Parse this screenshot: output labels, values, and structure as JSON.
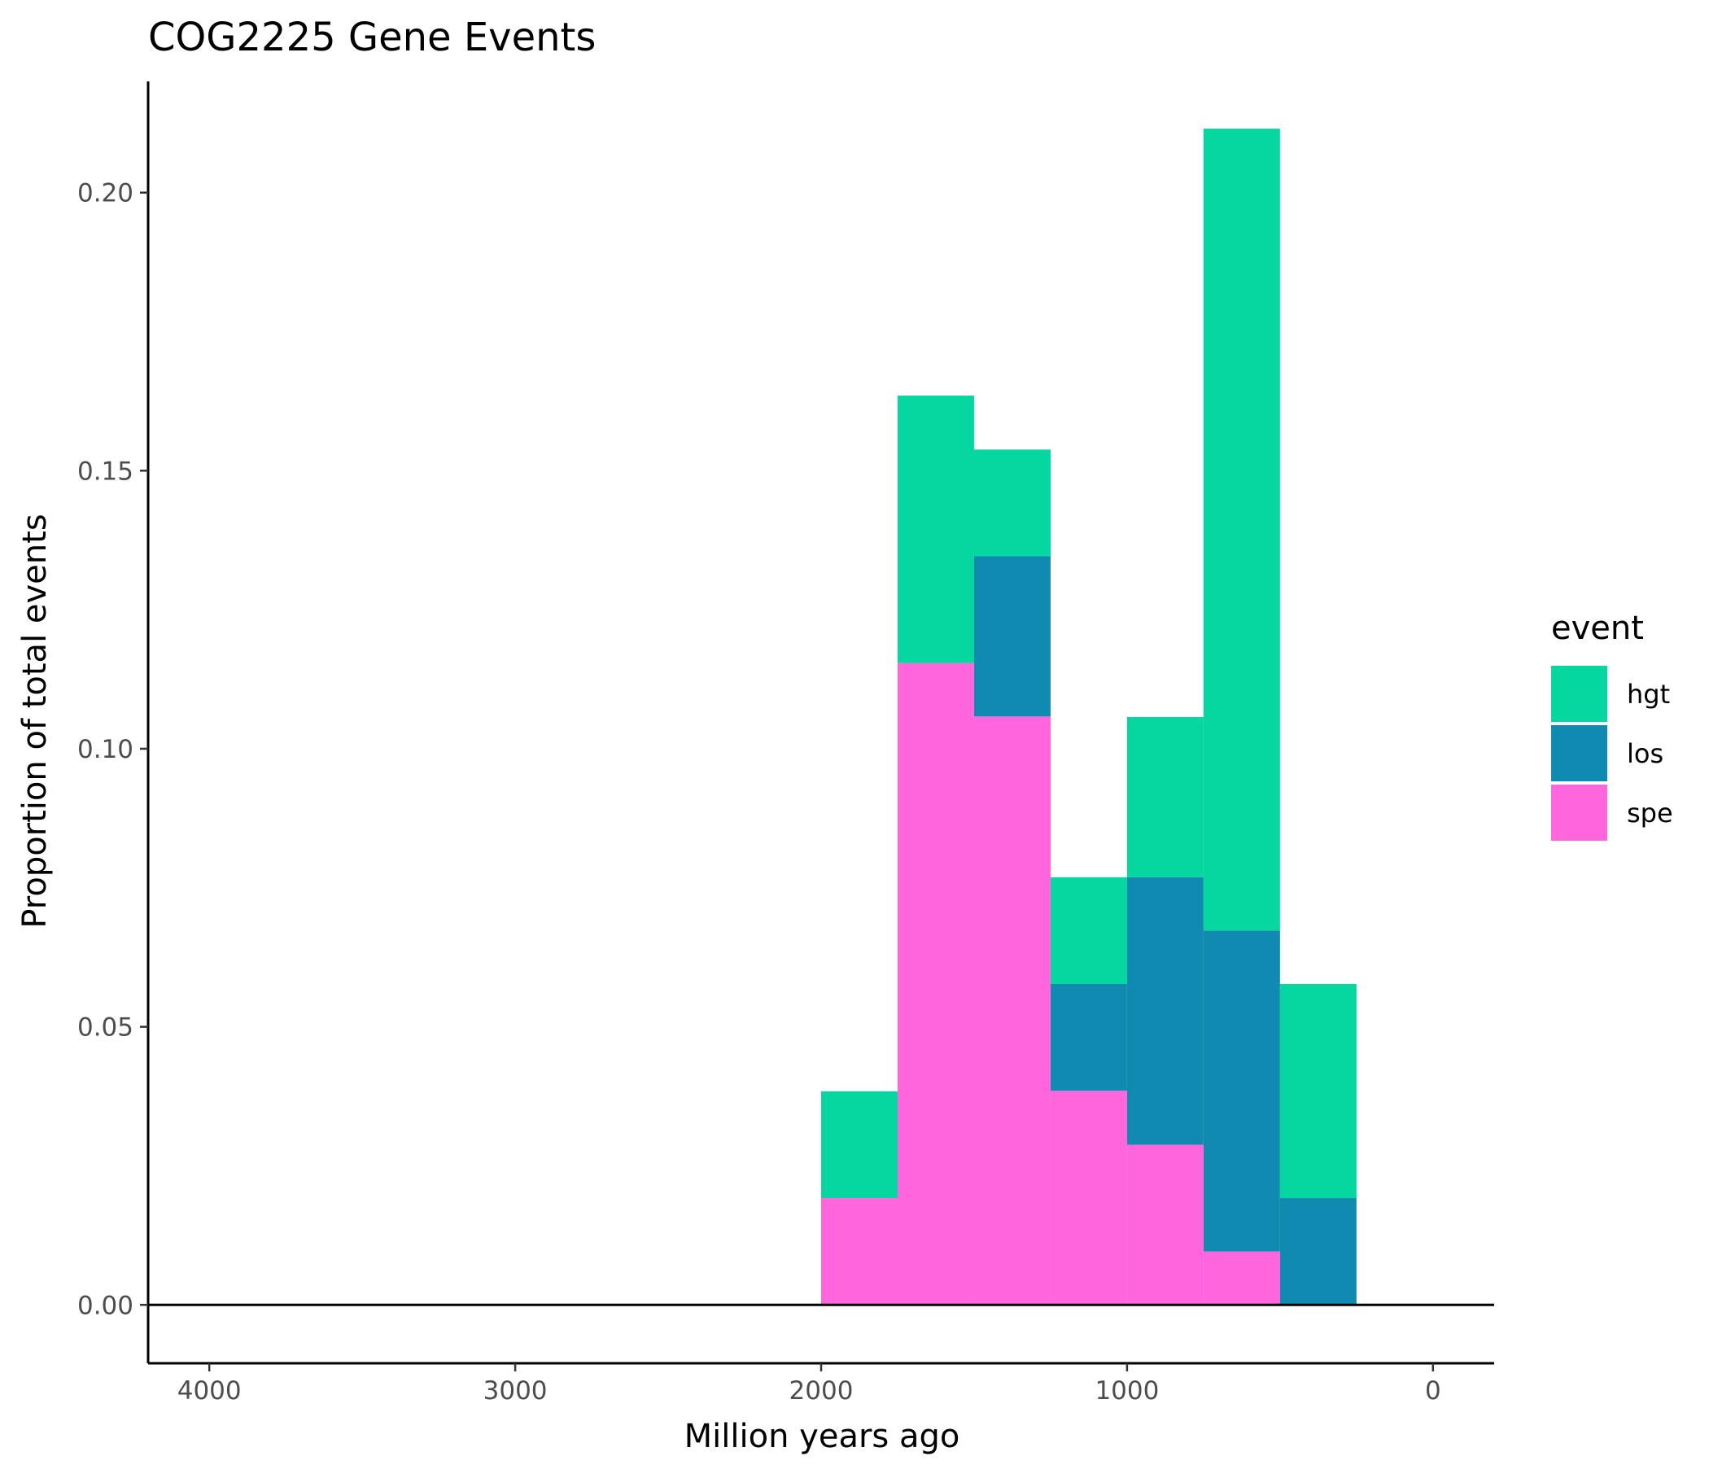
{
  "chart_data": {
    "type": "bar",
    "stacked": true,
    "title": "COG2225 Gene Events",
    "xlabel": "Million years ago",
    "ylabel": "Proportion of total events",
    "x_reversed": true,
    "xlim": [
      4200,
      -200
    ],
    "ylim": [
      -0.0105,
      0.22
    ],
    "x_ticks": [
      4000,
      3000,
      2000,
      1000,
      0
    ],
    "x_tick_labels": [
      "4000",
      "3000",
      "2000",
      "1000",
      "0"
    ],
    "y_ticks": [
      0.0,
      0.05,
      0.1,
      0.15,
      0.2
    ],
    "y_tick_labels": [
      "0.00",
      "0.05",
      "0.10",
      "0.15",
      "0.20"
    ],
    "bin_width": 250,
    "bin_centers": [
      1875,
      1625,
      1375,
      1125,
      875,
      625,
      375
    ],
    "series": [
      {
        "name": "spe",
        "color": "#FF66DD",
        "values": [
          0.0192,
          0.1154,
          0.1058,
          0.0385,
          0.0288,
          0.0096,
          0.0
        ]
      },
      {
        "name": "los",
        "color": "#118AB2",
        "values": [
          0.0,
          0.0,
          0.0288,
          0.0192,
          0.0481,
          0.0577,
          0.0192
        ]
      },
      {
        "name": "hgt",
        "color": "#06D6A0",
        "values": [
          0.0192,
          0.0481,
          0.0192,
          0.0192,
          0.0288,
          0.1442,
          0.0385
        ]
      }
    ],
    "legend": {
      "title": "event",
      "position": "right",
      "entries": [
        {
          "label": "hgt",
          "color": "#06D6A0"
        },
        {
          "label": "los",
          "color": "#118AB2"
        },
        {
          "label": "spe",
          "color": "#FF66DD"
        }
      ]
    },
    "grid": false,
    "hline_at": 0
  }
}
